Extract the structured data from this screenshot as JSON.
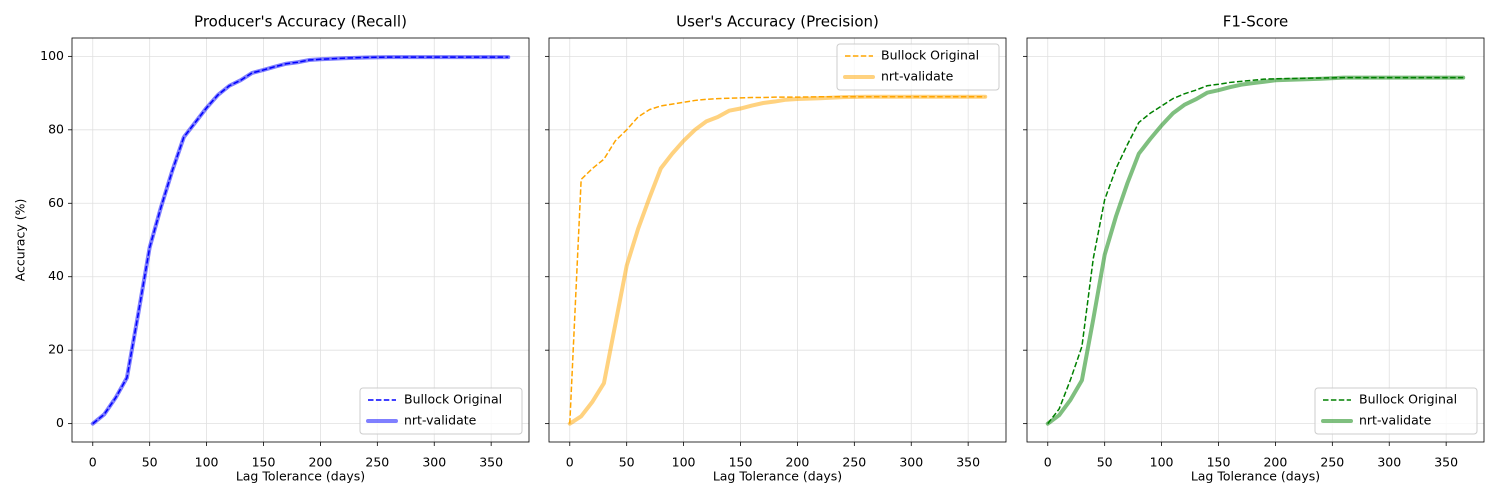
{
  "chart_data": [
    {
      "type": "line",
      "title": "Producer's Accuracy (Recall)",
      "x_label": "Lag Tolerance (days)",
      "y_label": "Accuracy (%)",
      "x": [
        0,
        10,
        20,
        30,
        40,
        50,
        60,
        70,
        80,
        90,
        100,
        110,
        120,
        130,
        140,
        150,
        160,
        170,
        180,
        190,
        200,
        220,
        240,
        260,
        280,
        300,
        320,
        340,
        365
      ],
      "series": [
        {
          "name": "Bullock Original",
          "color": "#0000ff",
          "linestyle": "dashed",
          "width": 1.5,
          "opacity": 1,
          "values": [
            0,
            2.5,
            7,
            12.5,
            30,
            48,
            59,
            69,
            78,
            82,
            86,
            89.5,
            92,
            93.5,
            95.5,
            96.3,
            97.2,
            98,
            98.4,
            99,
            99.2,
            99.5,
            99.7,
            99.8,
            99.8,
            99.8,
            99.8,
            99.8,
            99.8
          ]
        },
        {
          "name": "nrt-validate",
          "color": "#0000ff",
          "linestyle": "solid",
          "width": 4,
          "opacity": 0.5,
          "values": [
            0,
            2.5,
            7,
            12.5,
            30,
            48,
            59,
            69,
            78,
            82,
            86,
            89.5,
            92,
            93.5,
            95.5,
            96.3,
            97.2,
            98,
            98.4,
            99,
            99.2,
            99.5,
            99.7,
            99.8,
            99.8,
            99.8,
            99.8,
            99.8,
            99.8
          ]
        }
      ],
      "xlim": [
        -18.25,
        383.25
      ],
      "ylim": [
        -5,
        105
      ],
      "xticks": [
        0,
        50,
        100,
        150,
        200,
        250,
        300,
        350
      ],
      "yticks": [
        0,
        20,
        40,
        60,
        80,
        100
      ],
      "show_ytick_labels": true,
      "grid": true,
      "legend": "lower right"
    },
    {
      "type": "line",
      "title": "User's Accuracy (Precision)",
      "x_label": "Lag Tolerance (days)",
      "x": [
        0,
        10,
        20,
        30,
        40,
        50,
        60,
        70,
        80,
        90,
        100,
        110,
        120,
        130,
        140,
        150,
        160,
        170,
        180,
        190,
        200,
        220,
        240,
        260,
        280,
        300,
        320,
        340,
        365
      ],
      "series": [
        {
          "name": "Bullock Original",
          "color": "#ffa500",
          "linestyle": "dashed",
          "width": 1.5,
          "opacity": 1,
          "values": [
            0,
            66.5,
            69.5,
            72,
            77,
            80,
            83.5,
            85.5,
            86.5,
            87,
            87.5,
            88,
            88.3,
            88.5,
            88.6,
            88.7,
            88.8,
            88.8,
            88.9,
            88.9,
            88.9,
            89,
            89,
            89,
            89,
            89,
            89,
            89,
            89
          ]
        },
        {
          "name": "nrt-validate",
          "color": "#ffa500",
          "linestyle": "solid",
          "width": 4,
          "opacity": 0.5,
          "values": [
            0,
            2,
            6,
            11,
            27,
            43,
            53,
            61.5,
            69.5,
            73.5,
            77,
            80,
            82.3,
            83.5,
            85.2,
            85.8,
            86.6,
            87.3,
            87.7,
            88.2,
            88.4,
            88.6,
            88.9,
            89,
            89,
            89,
            89,
            89,
            89
          ]
        }
      ],
      "xlim": [
        -18.25,
        383.25
      ],
      "ylim": [
        -5,
        105
      ],
      "xticks": [
        0,
        50,
        100,
        150,
        200,
        250,
        300,
        350
      ],
      "yticks": [
        0,
        20,
        40,
        60,
        80,
        100
      ],
      "show_ytick_labels": false,
      "grid": true,
      "legend": "upper right"
    },
    {
      "type": "line",
      "title": "F1-Score",
      "x_label": "Lag Tolerance (days)",
      "x": [
        0,
        10,
        20,
        30,
        40,
        50,
        60,
        70,
        80,
        90,
        100,
        110,
        120,
        130,
        140,
        150,
        160,
        170,
        180,
        190,
        200,
        220,
        240,
        260,
        280,
        300,
        320,
        340,
        365
      ],
      "series": [
        {
          "name": "Bullock Original",
          "color": "#008000",
          "linestyle": "dashed",
          "width": 1.5,
          "opacity": 1,
          "values": [
            0,
            4,
            12,
            21,
            45,
            61,
            69.5,
            76,
            82,
            84.5,
            86.5,
            88.5,
            89.8,
            90.8,
            92,
            92.4,
            92.9,
            93.2,
            93.5,
            93.8,
            93.9,
            94,
            94.1,
            94.2,
            94.2,
            94.2,
            94.2,
            94.2,
            94.2
          ]
        },
        {
          "name": "nrt-validate",
          "color": "#008000",
          "linestyle": "solid",
          "width": 4,
          "opacity": 0.5,
          "values": [
            0,
            2.3,
            6.5,
            11.8,
            28.5,
            46,
            56.5,
            65.5,
            73.5,
            77.5,
            81.2,
            84.5,
            86.8,
            88.3,
            90.1,
            90.8,
            91.6,
            92.3,
            92.7,
            93.1,
            93.5,
            93.7,
            93.9,
            94.2,
            94.2,
            94.2,
            94.2,
            94.2,
            94.2
          ]
        }
      ],
      "xlim": [
        -18.25,
        383.25
      ],
      "ylim": [
        -5,
        105
      ],
      "xticks": [
        0,
        50,
        100,
        150,
        200,
        250,
        300,
        350
      ],
      "yticks": [
        0,
        20,
        40,
        60,
        80,
        100
      ],
      "show_ytick_labels": false,
      "grid": true,
      "legend": "lower right"
    }
  ]
}
